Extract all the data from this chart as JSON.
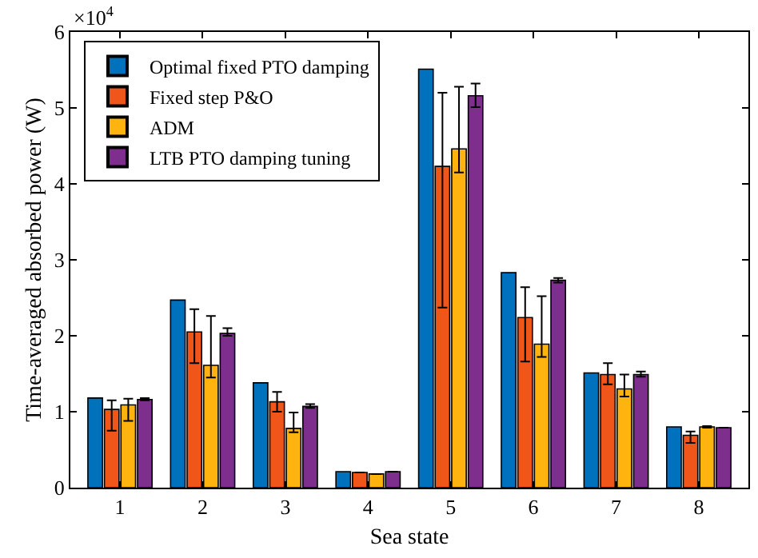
{
  "chart_data": {
    "type": "bar",
    "xlabel": "Sea state",
    "ylabel": "Time-averaged absorbed power (W)",
    "categories": [
      "1",
      "2",
      "3",
      "4",
      "5",
      "6",
      "7",
      "8"
    ],
    "series": [
      {
        "name": "Optimal fixed PTO damping",
        "color": "#0072bd",
        "values": [
          1.18,
          2.47,
          1.38,
          0.21,
          5.51,
          2.83,
          1.51,
          0.8
        ]
      },
      {
        "name": "Fixed step P&O",
        "color": "#f0561a",
        "values": [
          1.03,
          2.05,
          1.13,
          0.2,
          4.23,
          2.24,
          1.49,
          0.69
        ],
        "errors": [
          [
            0.75,
            1.15
          ],
          [
            1.64,
            2.35
          ],
          [
            1.0,
            1.26
          ],
          null,
          [
            2.37,
            5.2
          ],
          [
            1.66,
            2.64
          ],
          [
            1.36,
            1.64
          ],
          [
            0.59,
            0.74
          ]
        ]
      },
      {
        "name": "ADM",
        "color": "#ffb30f",
        "values": [
          1.09,
          1.61,
          0.78,
          0.18,
          4.46,
          1.89,
          1.3,
          0.8
        ],
        "errors": [
          [
            0.88,
            1.17
          ],
          [
            1.45,
            2.26
          ],
          [
            0.73,
            0.99
          ],
          null,
          [
            4.15,
            5.28
          ],
          [
            1.72,
            2.52
          ],
          [
            1.2,
            1.49
          ],
          [
            0.79,
            0.81
          ]
        ]
      },
      {
        "name": "LTB PTO damping tuning",
        "color": "#7e2f8e",
        "values": [
          1.16,
          2.03,
          1.07,
          0.21,
          5.16,
          2.73,
          1.49,
          0.79
        ],
        "errors": [
          [
            1.15,
            1.18
          ],
          [
            2.0,
            2.1
          ],
          [
            1.05,
            1.1
          ],
          null,
          [
            5.01,
            5.32
          ],
          [
            2.7,
            2.76
          ],
          [
            1.46,
            1.53
          ],
          null
        ]
      }
    ],
    "ylim": [
      0,
      6
    ],
    "yticks": [
      0,
      1,
      2,
      3,
      4,
      5,
      6
    ],
    "annotations": [
      "×10$^{4}$"
    ],
    "legend": "top left"
  }
}
